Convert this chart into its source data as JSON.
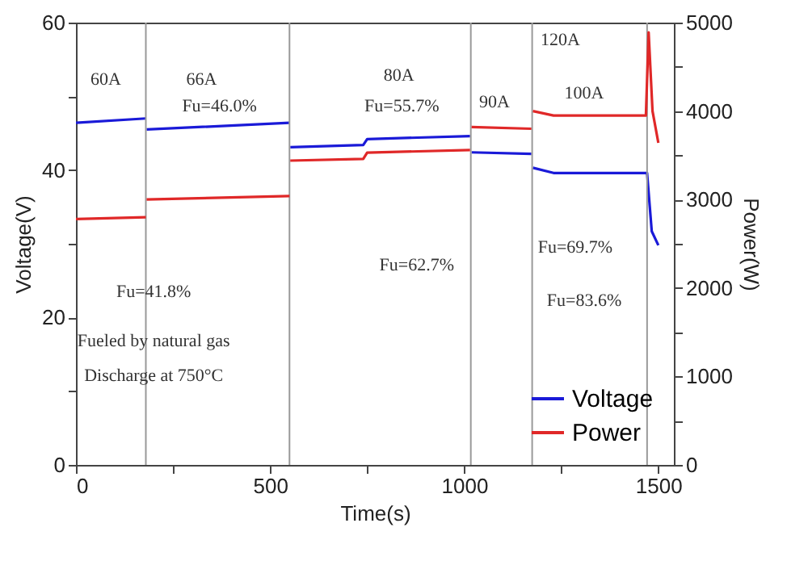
{
  "chart_data": {
    "type": "line",
    "xlabel": "Time(s)",
    "ylabel": "Voltage(V)",
    "y2label": "Power(W)",
    "xlim": [
      0,
      1540
    ],
    "xticks": [
      0,
      {
        "value": 250,
        "label": null
      },
      500,
      {
        "value": 750,
        "label": null
      },
      1000,
      {
        "value": 1250,
        "label": null
      },
      1500
    ],
    "ylim": [
      0,
      60
    ],
    "yticks": [
      0,
      {
        "value": 10,
        "label": null
      },
      20,
      {
        "value": 30,
        "label": null
      },
      40,
      {
        "value": 50,
        "label": null
      },
      60
    ],
    "y2lim": [
      0,
      5000
    ],
    "y2ticks": [
      0,
      {
        "value": 500,
        "label": null
      },
      1000,
      {
        "value": 1500,
        "label": null
      },
      2000,
      {
        "value": 2500,
        "label": null
      },
      3000,
      {
        "value": 3500,
        "label": null
      },
      4000,
      {
        "value": 4500,
        "label": null
      },
      5000
    ],
    "grid": false,
    "legend": "bottom right",
    "line_style": "solid",
    "marker": "none",
    "series": [
      {
        "name": "Voltage",
        "color": "#1a1ad8",
        "x": [
          0,
          180,
          181,
          182,
          550,
          551,
          552,
          740,
          750,
          1015,
          1016,
          1019,
          1173,
          1174,
          1177,
          1230,
          1468,
          1471,
          1483,
          1500
        ],
        "values": [
          46.4,
          47.0,
          null,
          45.5,
          46.4,
          null,
          43.1,
          43.4,
          44.2,
          44.6,
          null,
          42.4,
          42.2,
          null,
          40.3,
          39.6,
          39.6,
          39.6,
          31.7,
          29.8
        ]
      },
      {
        "name": "Power",
        "color": "#e02828",
        "axis": "y2",
        "x": [
          0,
          180,
          181,
          182,
          550,
          551,
          552,
          740,
          750,
          1015,
          1016,
          1019,
          1173,
          1174,
          1177,
          1230,
          1468,
          1475,
          1485,
          1500
        ],
        "values": [
          2780,
          2800,
          null,
          3000,
          3040,
          null,
          3440,
          3460,
          3530,
          3560,
          null,
          3820,
          3800,
          null,
          4000,
          3950,
          3950,
          4890,
          4000,
          3640
        ]
      }
    ],
    "ref_lines": [
      {
        "axis": "x",
        "value": 180,
        "color": "#999999"
      },
      {
        "axis": "x",
        "value": 550,
        "color": "#999999"
      },
      {
        "axis": "x",
        "value": 1017,
        "color": "#999999"
      },
      {
        "axis": "x",
        "value": 1175,
        "color": "#999999"
      },
      {
        "axis": "x",
        "value": 1471,
        "color": "#999999"
      }
    ],
    "annotations": [
      "60A",
      "66A",
      "Fu=46.0%",
      "80A",
      "Fu=55.7%",
      "90A",
      "100A",
      "120A",
      "Fu=41.8%",
      "Fu=62.7%",
      "Fu=69.7%",
      "Fu=83.6%",
      "Fueled by natural gas",
      "Discharge at 750°C"
    ]
  }
}
